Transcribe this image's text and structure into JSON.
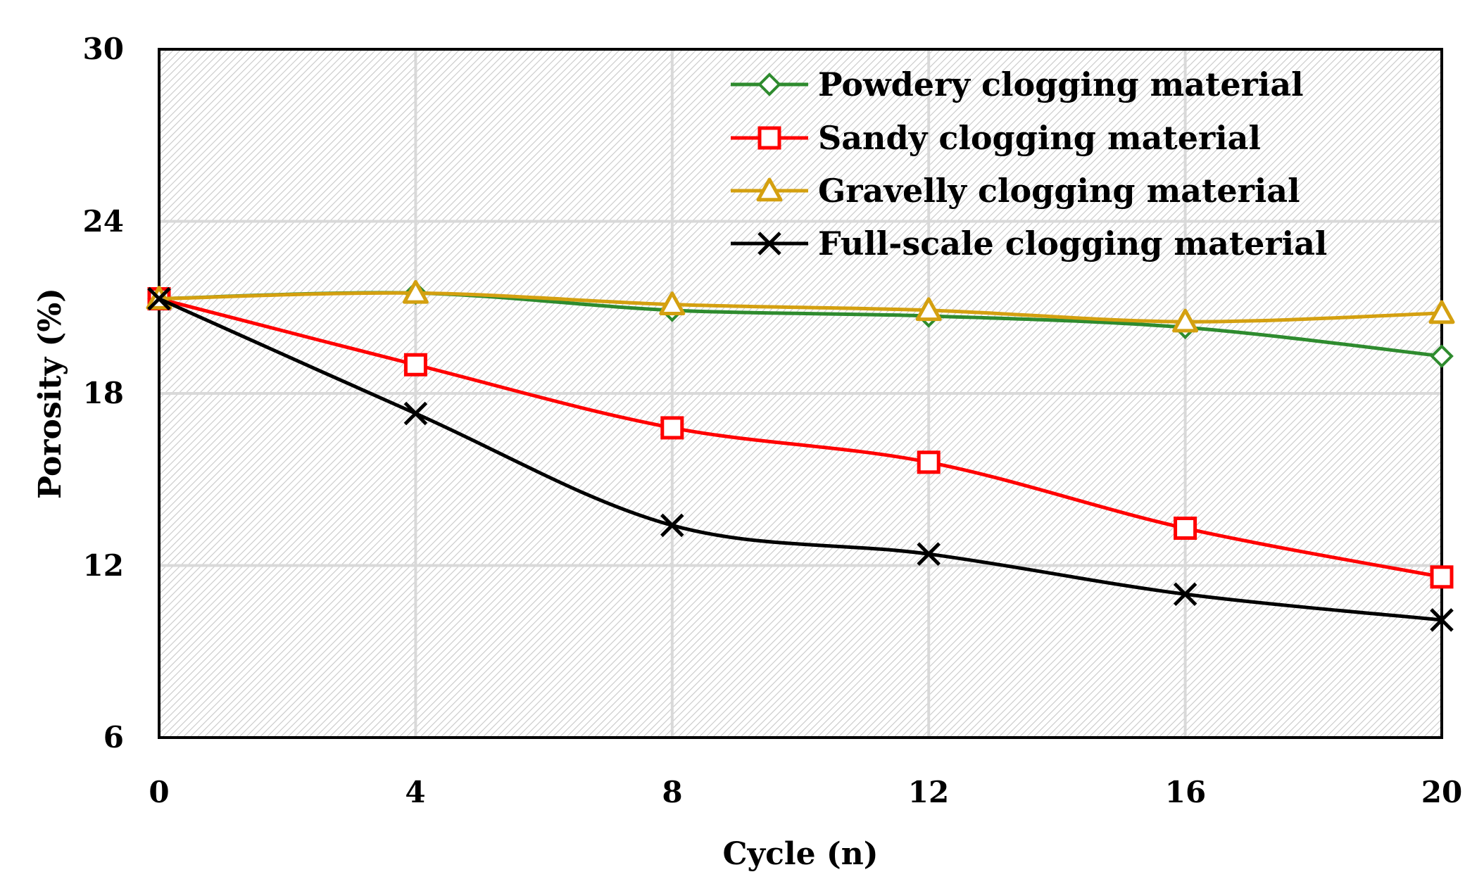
{
  "chart_data": {
    "type": "line",
    "title": "",
    "xlabel": "Cycle (n)",
    "ylabel": "Porosity (%)",
    "xlim": [
      0,
      20
    ],
    "ylim": [
      6,
      30
    ],
    "x_ticks": [
      "0",
      "4",
      "8",
      "12",
      "16",
      "20"
    ],
    "y_ticks": [
      "6",
      "12",
      "18",
      "24",
      "30"
    ],
    "x": [
      0,
      4,
      8,
      12,
      16,
      20
    ],
    "grid": true,
    "legend_position": "top-right",
    "series": [
      {
        "name": "Powdery clogging material",
        "color": "#2e8b2e",
        "marker": "diamond",
        "values": [
          21.3,
          21.5,
          20.9,
          20.7,
          20.3,
          19.3
        ]
      },
      {
        "name": "Sandy clogging material",
        "color": "#ff0000",
        "marker": "square",
        "values": [
          21.3,
          19.0,
          16.8,
          15.6,
          13.3,
          11.6
        ]
      },
      {
        "name": "Gravelly clogging material",
        "color": "#d4a010",
        "marker": "triangle",
        "values": [
          21.3,
          21.5,
          21.1,
          20.9,
          20.5,
          20.8
        ]
      },
      {
        "name": "Full-scale clogging material",
        "color": "#000000",
        "marker": "x",
        "values": [
          21.3,
          17.3,
          13.4,
          12.4,
          11.0,
          10.1
        ]
      }
    ]
  }
}
